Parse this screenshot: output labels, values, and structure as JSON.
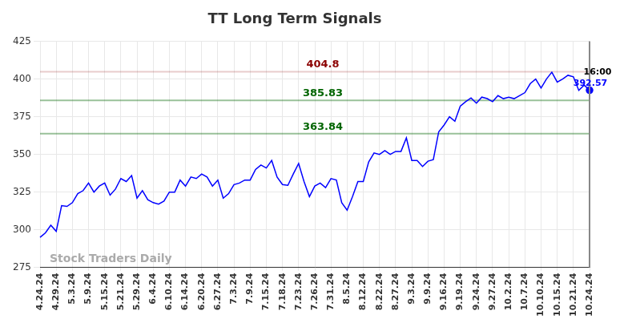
{
  "chart_data": {
    "type": "line",
    "title": "TT Long Term Signals",
    "categories": [
      "4.24.24",
      null,
      null,
      "4.29.24",
      null,
      null,
      "5.3.24",
      null,
      null,
      "5.9.24",
      null,
      null,
      "5.15.24",
      null,
      null,
      "5.21.24",
      null,
      null,
      "5.29.24",
      null,
      null,
      "6.4.24",
      null,
      null,
      "6.10.24",
      null,
      null,
      "6.14.24",
      null,
      null,
      "6.20.24",
      null,
      null,
      "6.27.24",
      null,
      null,
      "7.3.24",
      null,
      null,
      "7.9.24",
      null,
      null,
      "7.15.24",
      null,
      null,
      "7.18.24",
      null,
      null,
      "7.23.24",
      null,
      null,
      "7.26.24",
      null,
      null,
      "7.31.24",
      null,
      null,
      "8.5.24",
      null,
      null,
      "8.12.24",
      null,
      null,
      "8.22.24",
      null,
      null,
      "8.27.24",
      null,
      null,
      "9.3.24",
      null,
      null,
      "9.9.24",
      null,
      null,
      "9.16.24",
      null,
      null,
      "9.19.24",
      null,
      null,
      "9.24.24",
      null,
      null,
      "9.27.24",
      null,
      null,
      "10.2.24",
      null,
      null,
      "10.7.24",
      null,
      null,
      "10.10.24",
      null,
      null,
      "10.15.24",
      null,
      null,
      "10.21.24",
      null,
      null,
      "10.24.24"
    ],
    "values": [
      295,
      298,
      303,
      299,
      316,
      315.5,
      318,
      324,
      326,
      331,
      325,
      329,
      331,
      323,
      327,
      334,
      332,
      336,
      321,
      326,
      320,
      318,
      317,
      319,
      325,
      325,
      333,
      329,
      335,
      334,
      337,
      335,
      329,
      333,
      321,
      324,
      330,
      331,
      333,
      333,
      340,
      343,
      341,
      346,
      335,
      330,
      329.5,
      337,
      344,
      332,
      322,
      329,
      331,
      328,
      334,
      333,
      318,
      313,
      322,
      332,
      332,
      345,
      351,
      350,
      352.5,
      350,
      352,
      352,
      361,
      346,
      346,
      342,
      345.5,
      346.5,
      365,
      369.5,
      375,
      372,
      382,
      385,
      387.5,
      384,
      388,
      387,
      385,
      389,
      387,
      388,
      387,
      389,
      391,
      397,
      400,
      394,
      400,
      404.5,
      398,
      400,
      402.5,
      401.5,
      392.5,
      396,
      392.57
    ],
    "color": "#0000ff",
    "ylim": [
      275,
      425
    ],
    "yticks": [
      275,
      300,
      325,
      350,
      375,
      400,
      425
    ],
    "grid": true,
    "annotations": [
      {
        "value": 404.8,
        "color": "#8b0000"
      },
      {
        "value": 385.83,
        "color": "#006400"
      },
      {
        "value": 363.84,
        "color": "#006400"
      }
    ],
    "last_label": {
      "time": "16:00",
      "value": 392.57
    },
    "watermark": "Stock Traders Daily"
  }
}
